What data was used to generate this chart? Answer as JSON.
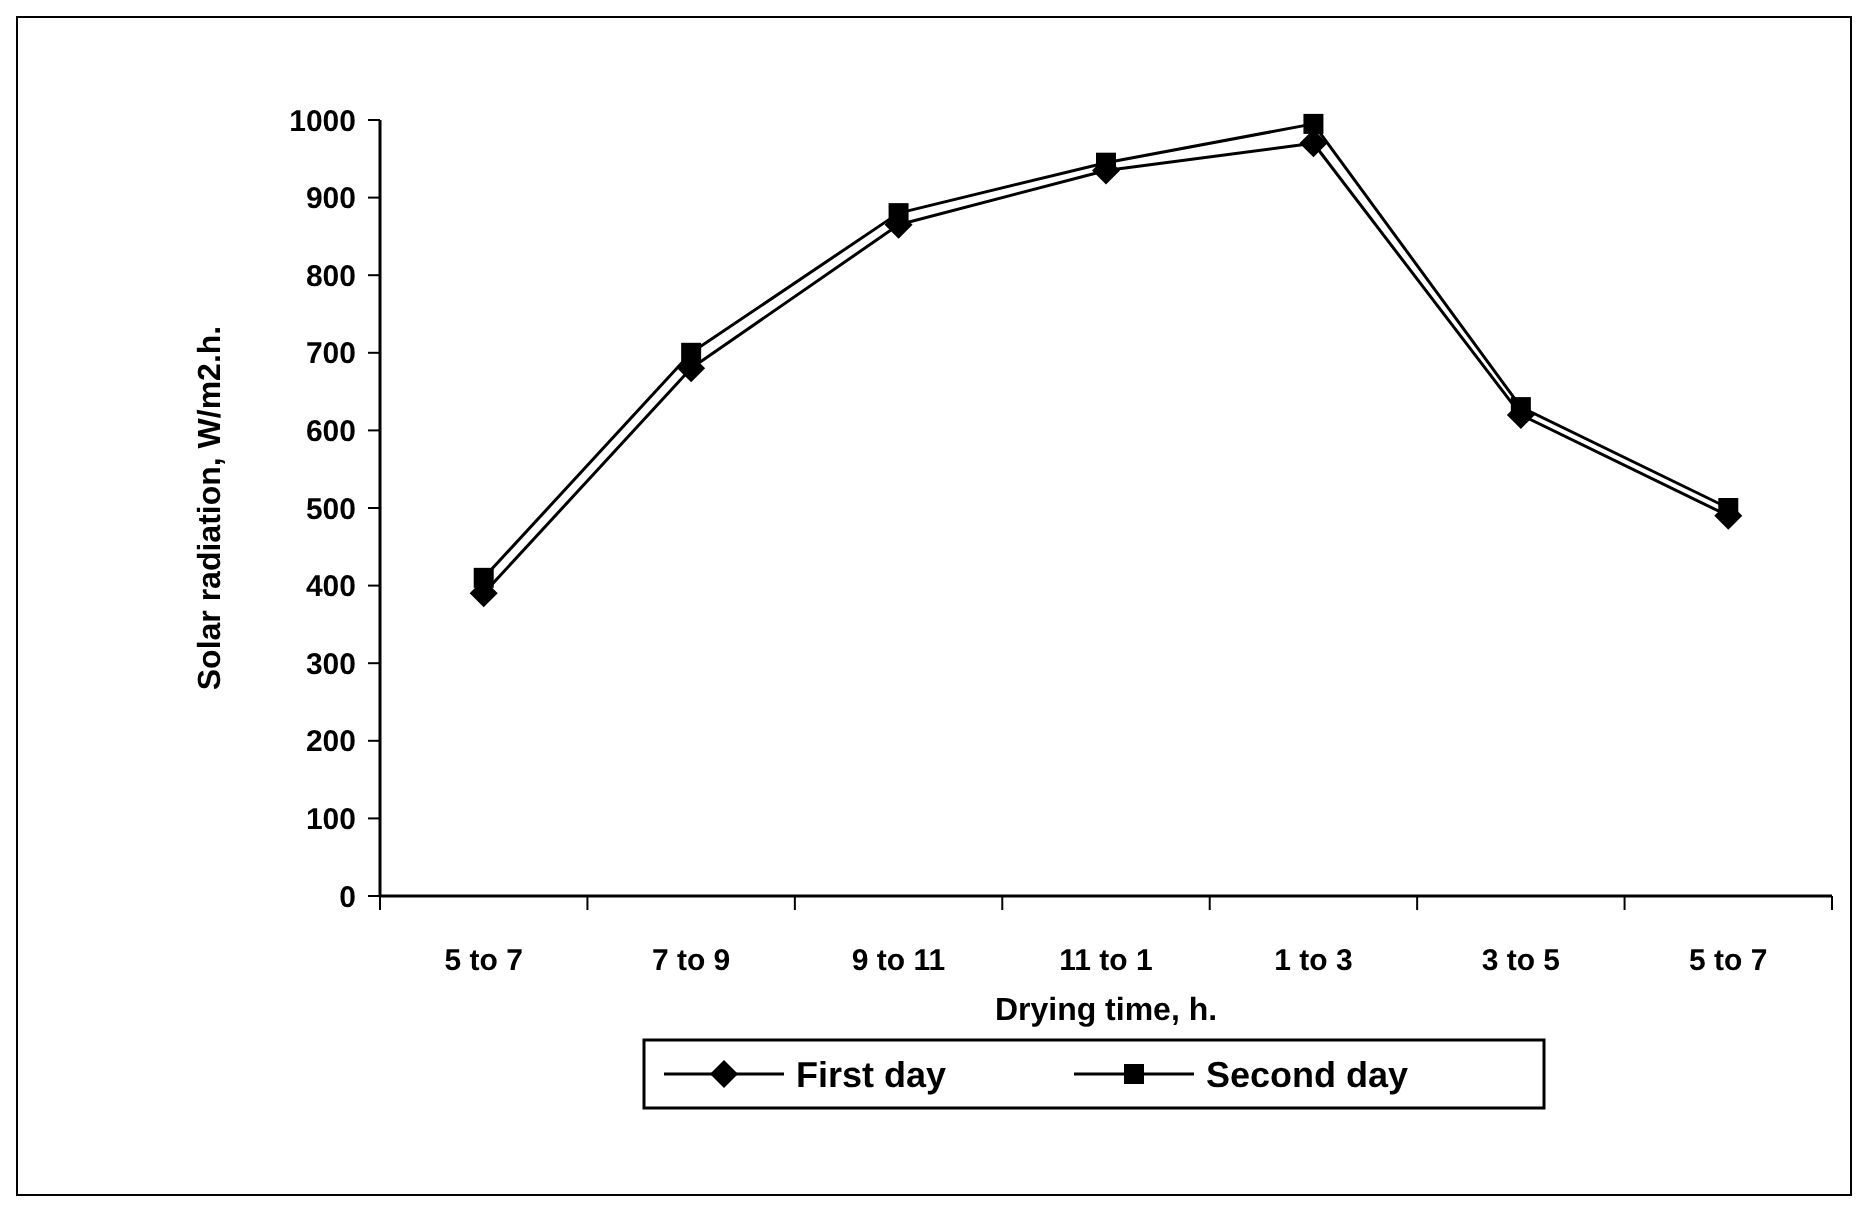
{
  "chart_data": {
    "type": "line",
    "xlabel": "Drying time, h.",
    "ylabel": "Solar radiation, W/m2.h.",
    "categories": [
      "5 to 7",
      "7 to 9",
      "9 to 11",
      "11 to 1",
      "1 to 3",
      "3 to 5",
      "5 to 7"
    ],
    "series": [
      {
        "name": "First day",
        "color": "#000000",
        "marker": "diamond",
        "values": [
          390,
          680,
          865,
          935,
          970,
          620,
          490
        ]
      },
      {
        "name": "Second day",
        "color": "#000000",
        "marker": "square",
        "values": [
          410,
          700,
          880,
          945,
          995,
          630,
          500
        ]
      }
    ],
    "ylim": [
      0,
      1000
    ],
    "yticks": [
      0,
      100,
      200,
      300,
      400,
      500,
      600,
      700,
      800,
      900,
      1000
    ],
    "grid": false,
    "legend": "bottom",
    "line_style": "solid"
  }
}
